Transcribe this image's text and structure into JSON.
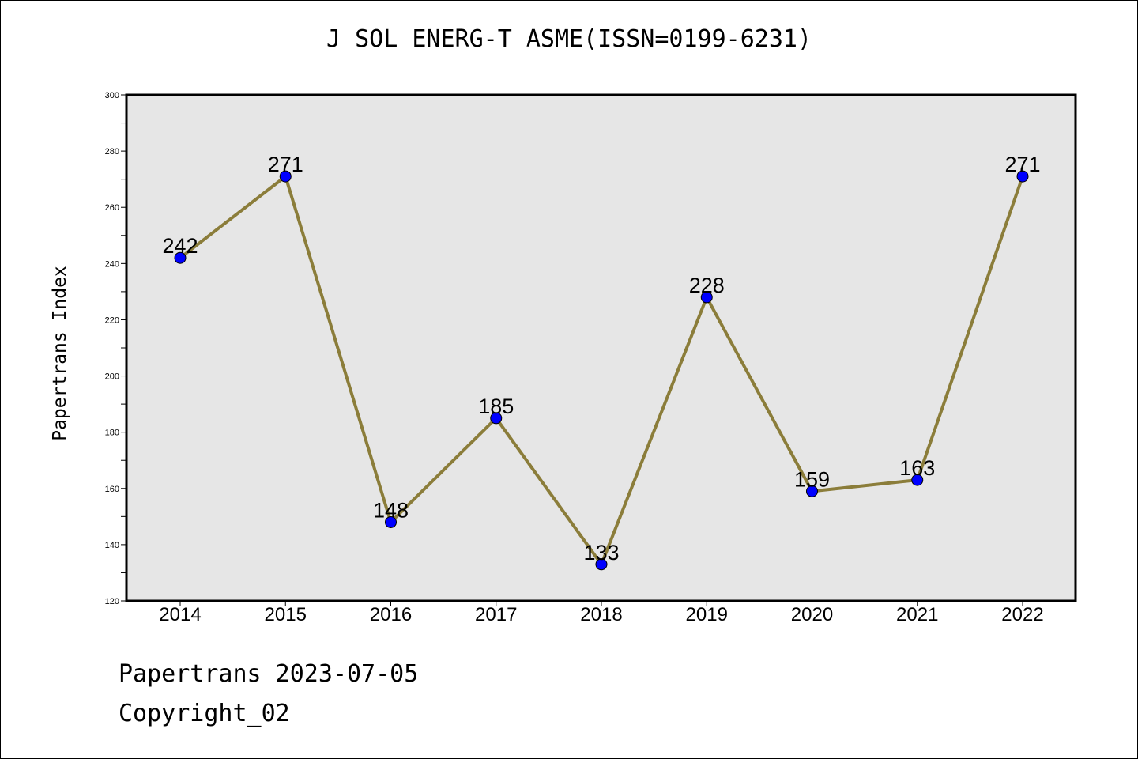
{
  "chart_data": {
    "type": "line",
    "title": "J SOL ENERG-T ASME(ISSN=0199-6231)",
    "ylabel": "Papertrans Index",
    "xlabel": "",
    "categories": [
      "2014",
      "2015",
      "2016",
      "2017",
      "2018",
      "2019",
      "2020",
      "2021",
      "2022"
    ],
    "series": [
      {
        "values": [
          242,
          271,
          148,
          185,
          133,
          228,
          159,
          163,
          271
        ]
      }
    ],
    "ylim": [
      120,
      300
    ],
    "yticks": [
      120,
      140,
      160,
      180,
      200,
      220,
      240,
      260,
      280,
      300
    ],
    "grid": false,
    "line_color": "#8b7d3a",
    "marker_color": "#0000ff",
    "plot_background": "#e6e6e6"
  },
  "footer": {
    "line1": "Papertrans 2023-07-05",
    "line2": "Copyright_02"
  }
}
